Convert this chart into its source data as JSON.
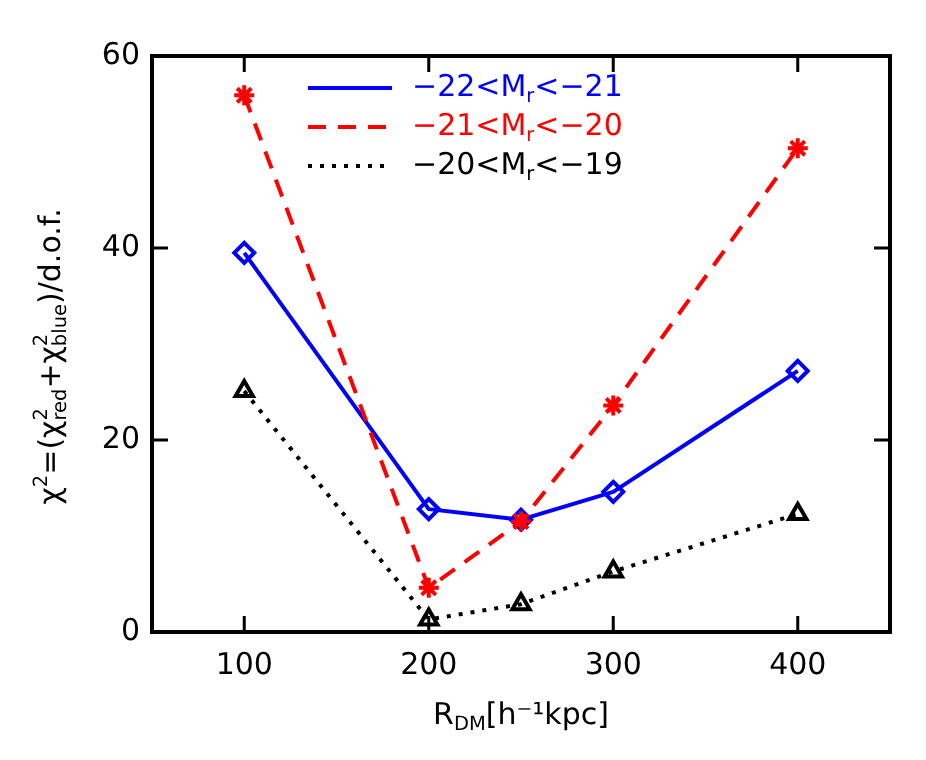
{
  "chart_data": {
    "type": "line",
    "xlabel": "R$_{DM}$[h⁻¹kpc]",
    "ylabel": "χ$^{2}$=(χ$_{red}$$^{2}$+χ$_{blue}$$^{2}$)/d.o.f.",
    "x": [
      100,
      200,
      250,
      300,
      400
    ],
    "series": [
      {
        "name": "−22<M$_{r}$<−21",
        "color": "#0000ff",
        "marker": "diamond",
        "line_style": "solid",
        "values": [
          39.5,
          12.8,
          11.7,
          14.6,
          27.2
        ]
      },
      {
        "name": "−21<M$_{r}$<−20",
        "color": "#ff0000",
        "marker": "cross",
        "line_style": "dashed",
        "values": [
          55.9,
          4.6,
          11.5,
          23.6,
          50.4
        ]
      },
      {
        "name": "−20<M$_{r}$<−19",
        "color": "#000000",
        "marker": "triangle",
        "line_style": "dotted",
        "values": [
          25.1,
          1.3,
          2.9,
          6.3,
          12.3
        ]
      }
    ],
    "xlim": [
      50,
      450
    ],
    "xticks": [
      100,
      200,
      300,
      400
    ],
    "ylim": [
      0,
      60
    ],
    "yticks": [
      0,
      20,
      40,
      60
    ],
    "grid": false,
    "legend": "top"
  }
}
